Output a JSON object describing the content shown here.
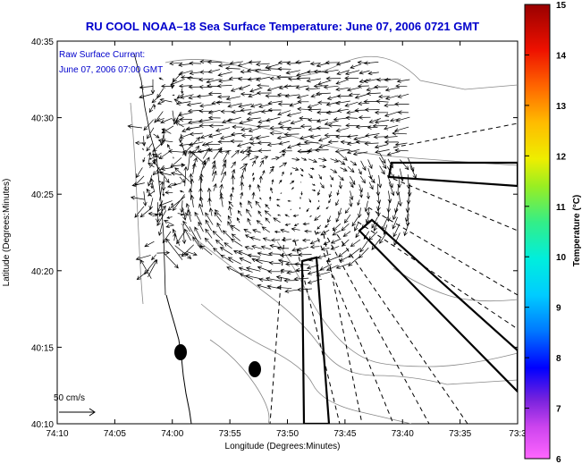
{
  "title": "RU COOL  NOAA–18  Sea Surface Temperature:  June 07, 2006 0721 GMT",
  "annotation": {
    "line1": "Raw Surface Current:",
    "line2": "June 07, 2006 07:00 GMT"
  },
  "scale_label": "50 cm/s",
  "xlabel": "Longitude (Degrees:Minutes)",
  "ylabel": "Latitude (Degrees:Minutes)",
  "x_ticks": [
    "74:10",
    "74:05",
    "74:00",
    "73:55",
    "73:50",
    "73:45",
    "73:40",
    "73:35",
    "73:3"
  ],
  "y_ticks": [
    "40:35",
    "40:30",
    "40:25",
    "40:20",
    "40:15",
    "40:10"
  ],
  "colorbar": {
    "label": "Temperature (°C)",
    "ticks": [
      "15",
      "14",
      "13",
      "12",
      "11",
      "10",
      "9",
      "8",
      "7",
      "6"
    ],
    "range": [
      6,
      15
    ]
  },
  "colors": {
    "title": "#0000cc",
    "annotation": "#0000cc",
    "land_outline": "#888888",
    "vectors": "#000000"
  },
  "map": {
    "lon_range_min": [
      -74.1667,
      -73.5
    ],
    "lat_range_min": [
      40.1667,
      40.5833
    ],
    "features": [
      "coastline",
      "bathymetry-contours",
      "current-vectors",
      "survey-boxes",
      "buoy-markers"
    ]
  }
}
